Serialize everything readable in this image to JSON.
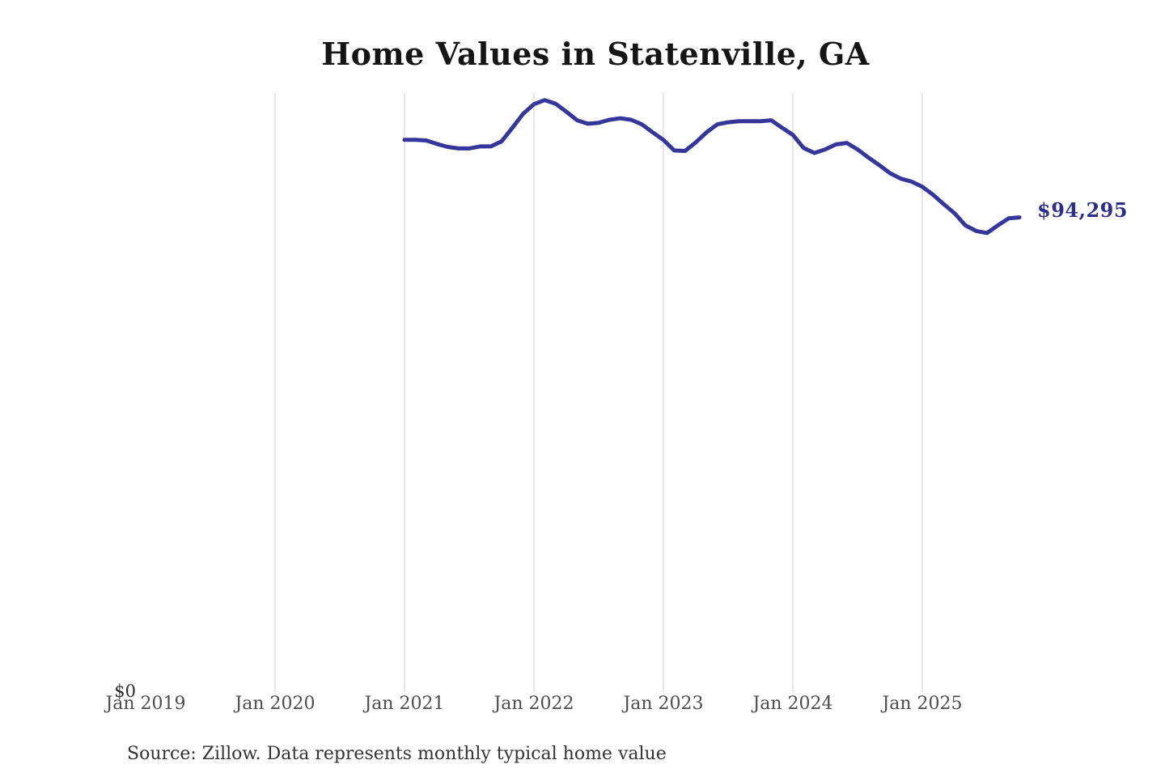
{
  "title": "Home Values in Statenville, GA",
  "source_note": "Source: Zillow. Data represents monthly typical home value",
  "end_value_label": "$94,295",
  "y_axis": {
    "zero_label": "$0"
  },
  "colors": {
    "line": "#35359b",
    "end_label": "#2d2d8a",
    "gridline": "#cccccc",
    "tick_label": "#4d4d4d",
    "title": "#151515",
    "source": "#333333",
    "background": "#ffffff"
  },
  "chart_data": {
    "type": "line",
    "title": "Home Values in Statenville, GA",
    "xlabel": "",
    "ylabel": "",
    "ylim": [
      0,
      119000
    ],
    "grid": "vertical-only",
    "legend": "none",
    "x_ticks": [
      {
        "label": "Jan 2019",
        "gridline": false
      },
      {
        "label": "Jan 2020",
        "gridline": true
      },
      {
        "label": "Jan 2021",
        "gridline": true
      },
      {
        "label": "Jan 2022",
        "gridline": true
      },
      {
        "label": "Jan 2023",
        "gridline": true
      },
      {
        "label": "Jan 2024",
        "gridline": true
      },
      {
        "label": "Jan 2025",
        "gridline": true
      }
    ],
    "annotations": [
      {
        "text": "$94,295",
        "attach": "last-point"
      },
      {
        "text": "$0",
        "attach": "y-axis-bottom"
      }
    ],
    "series": [
      {
        "name": "Typical home value",
        "months": [
          "2021-01",
          "2021-02",
          "2021-03",
          "2021-04",
          "2021-05",
          "2021-06",
          "2021-07",
          "2021-08",
          "2021-09",
          "2021-10",
          "2021-11",
          "2021-12",
          "2022-01",
          "2022-02",
          "2022-03",
          "2022-04",
          "2022-05",
          "2022-06",
          "2022-07",
          "2022-08",
          "2022-09",
          "2022-10",
          "2022-11",
          "2022-12",
          "2023-01",
          "2023-02",
          "2023-03",
          "2023-04",
          "2023-05",
          "2023-06",
          "2023-07",
          "2023-08",
          "2023-09",
          "2023-10",
          "2023-11",
          "2023-12",
          "2024-01",
          "2024-02",
          "2024-03",
          "2024-04",
          "2024-05",
          "2024-06",
          "2024-07",
          "2024-08",
          "2024-09",
          "2024-10",
          "2024-11",
          "2024-12",
          "2025-01",
          "2025-02",
          "2025-03",
          "2025-04",
          "2025-05",
          "2025-06",
          "2025-07",
          "2025-08",
          "2025-09",
          "2025-10"
        ],
        "values": [
          109700,
          109700,
          109600,
          108900,
          108300,
          108000,
          108000,
          108400,
          108400,
          109400,
          112100,
          114900,
          116800,
          117600,
          116900,
          115300,
          113600,
          112900,
          113100,
          113700,
          114000,
          113700,
          112800,
          111200,
          109700,
          107600,
          107500,
          109200,
          111200,
          112800,
          113200,
          113400,
          113400,
          113400,
          113600,
          112100,
          110700,
          108100,
          107100,
          107800,
          108800,
          109100,
          107800,
          106200,
          104700,
          103100,
          102000,
          101400,
          100400,
          98800,
          96900,
          95100,
          92700,
          91600,
          91200,
          92700,
          94100,
          94295
        ]
      }
    ]
  }
}
